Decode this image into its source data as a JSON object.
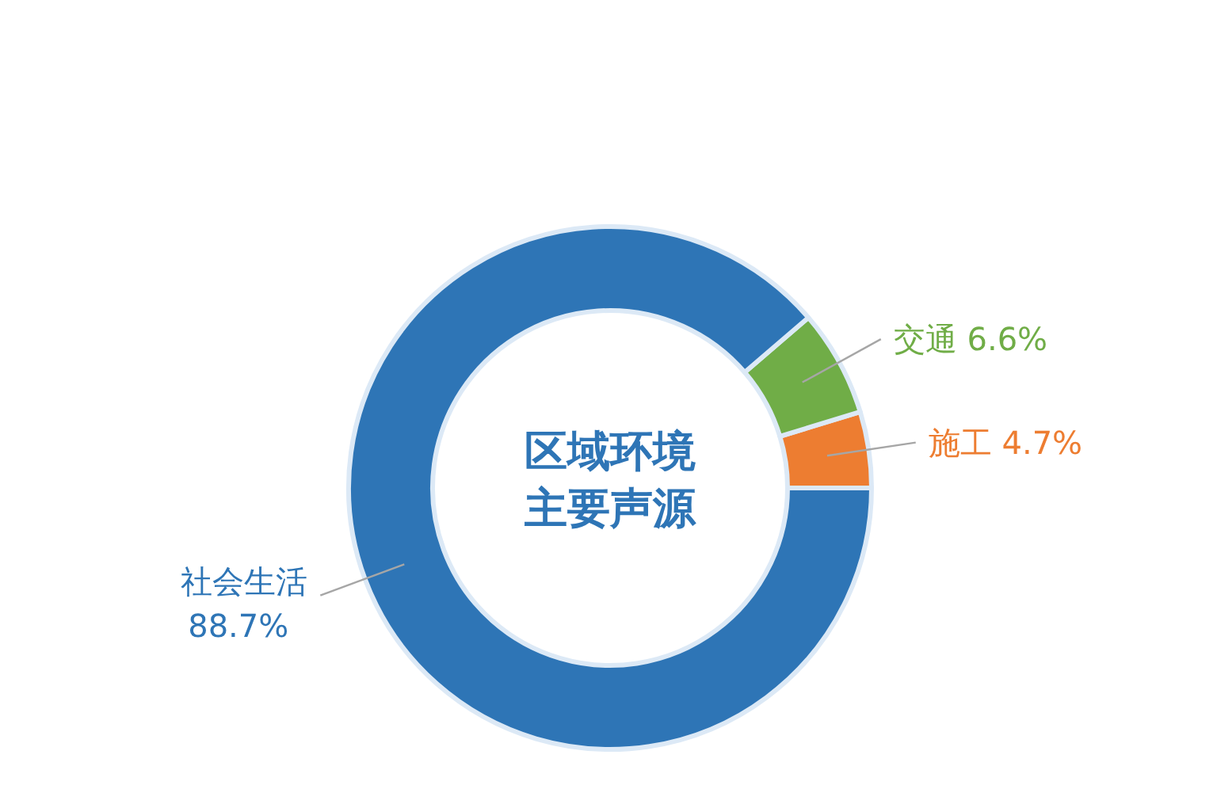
{
  "chart_data": {
    "type": "donut",
    "title": "区域环境主要声源",
    "categories": [
      "施工",
      "交通",
      "社会生活"
    ],
    "values": [
      4.7,
      6.6,
      88.7
    ],
    "colors": [
      "#ed7d31",
      "#70ad47",
      "#2e75b6"
    ],
    "value_labels": [
      "4.7%",
      "6.6%",
      "88.7%"
    ]
  }
}
